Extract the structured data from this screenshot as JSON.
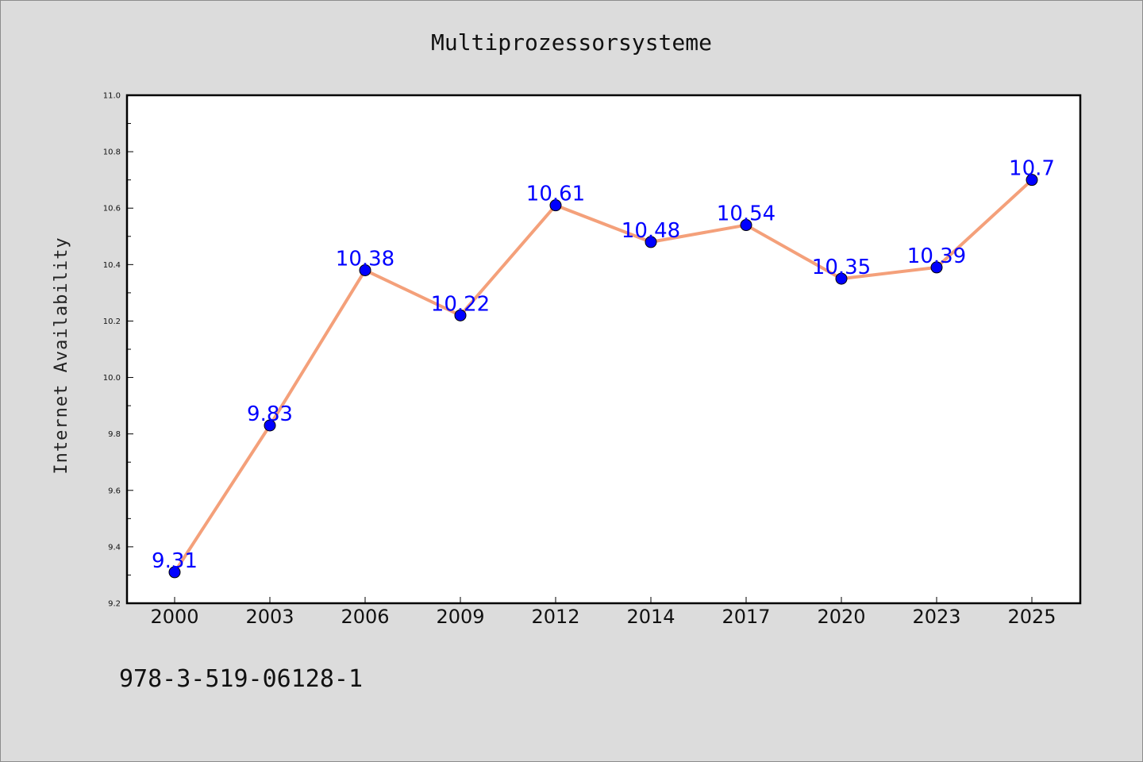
{
  "chart_data": {
    "type": "line",
    "title": "Multiprozessorsysteme",
    "xlabel": "",
    "ylabel": "Internet Availability",
    "categories": [
      "2000",
      "2003",
      "2006",
      "2009",
      "2012",
      "2014",
      "2017",
      "2020",
      "2023",
      "2025"
    ],
    "values": [
      9.31,
      9.83,
      10.38,
      10.22,
      10.61,
      10.48,
      10.54,
      10.35,
      10.39,
      10.7
    ],
    "data_labels": [
      "9.31",
      "9.83",
      "10.38",
      "10.22",
      "10.61",
      "10.48",
      "10.54",
      "10.35",
      "10.39",
      "10.7"
    ],
    "ylim": [
      9.2,
      11.0
    ],
    "yticks": [
      "9.2",
      "9.4",
      "9.6",
      "9.8",
      "10.0",
      "10.2",
      "10.4",
      "10.6",
      "10.8",
      "11.0"
    ],
    "grid": false,
    "legend": "none",
    "line_color": "#f4a07a",
    "marker_color": "#0000ff",
    "label_color": "#0000ff"
  },
  "footer": {
    "isbn": "978-3-519-06128-1"
  }
}
